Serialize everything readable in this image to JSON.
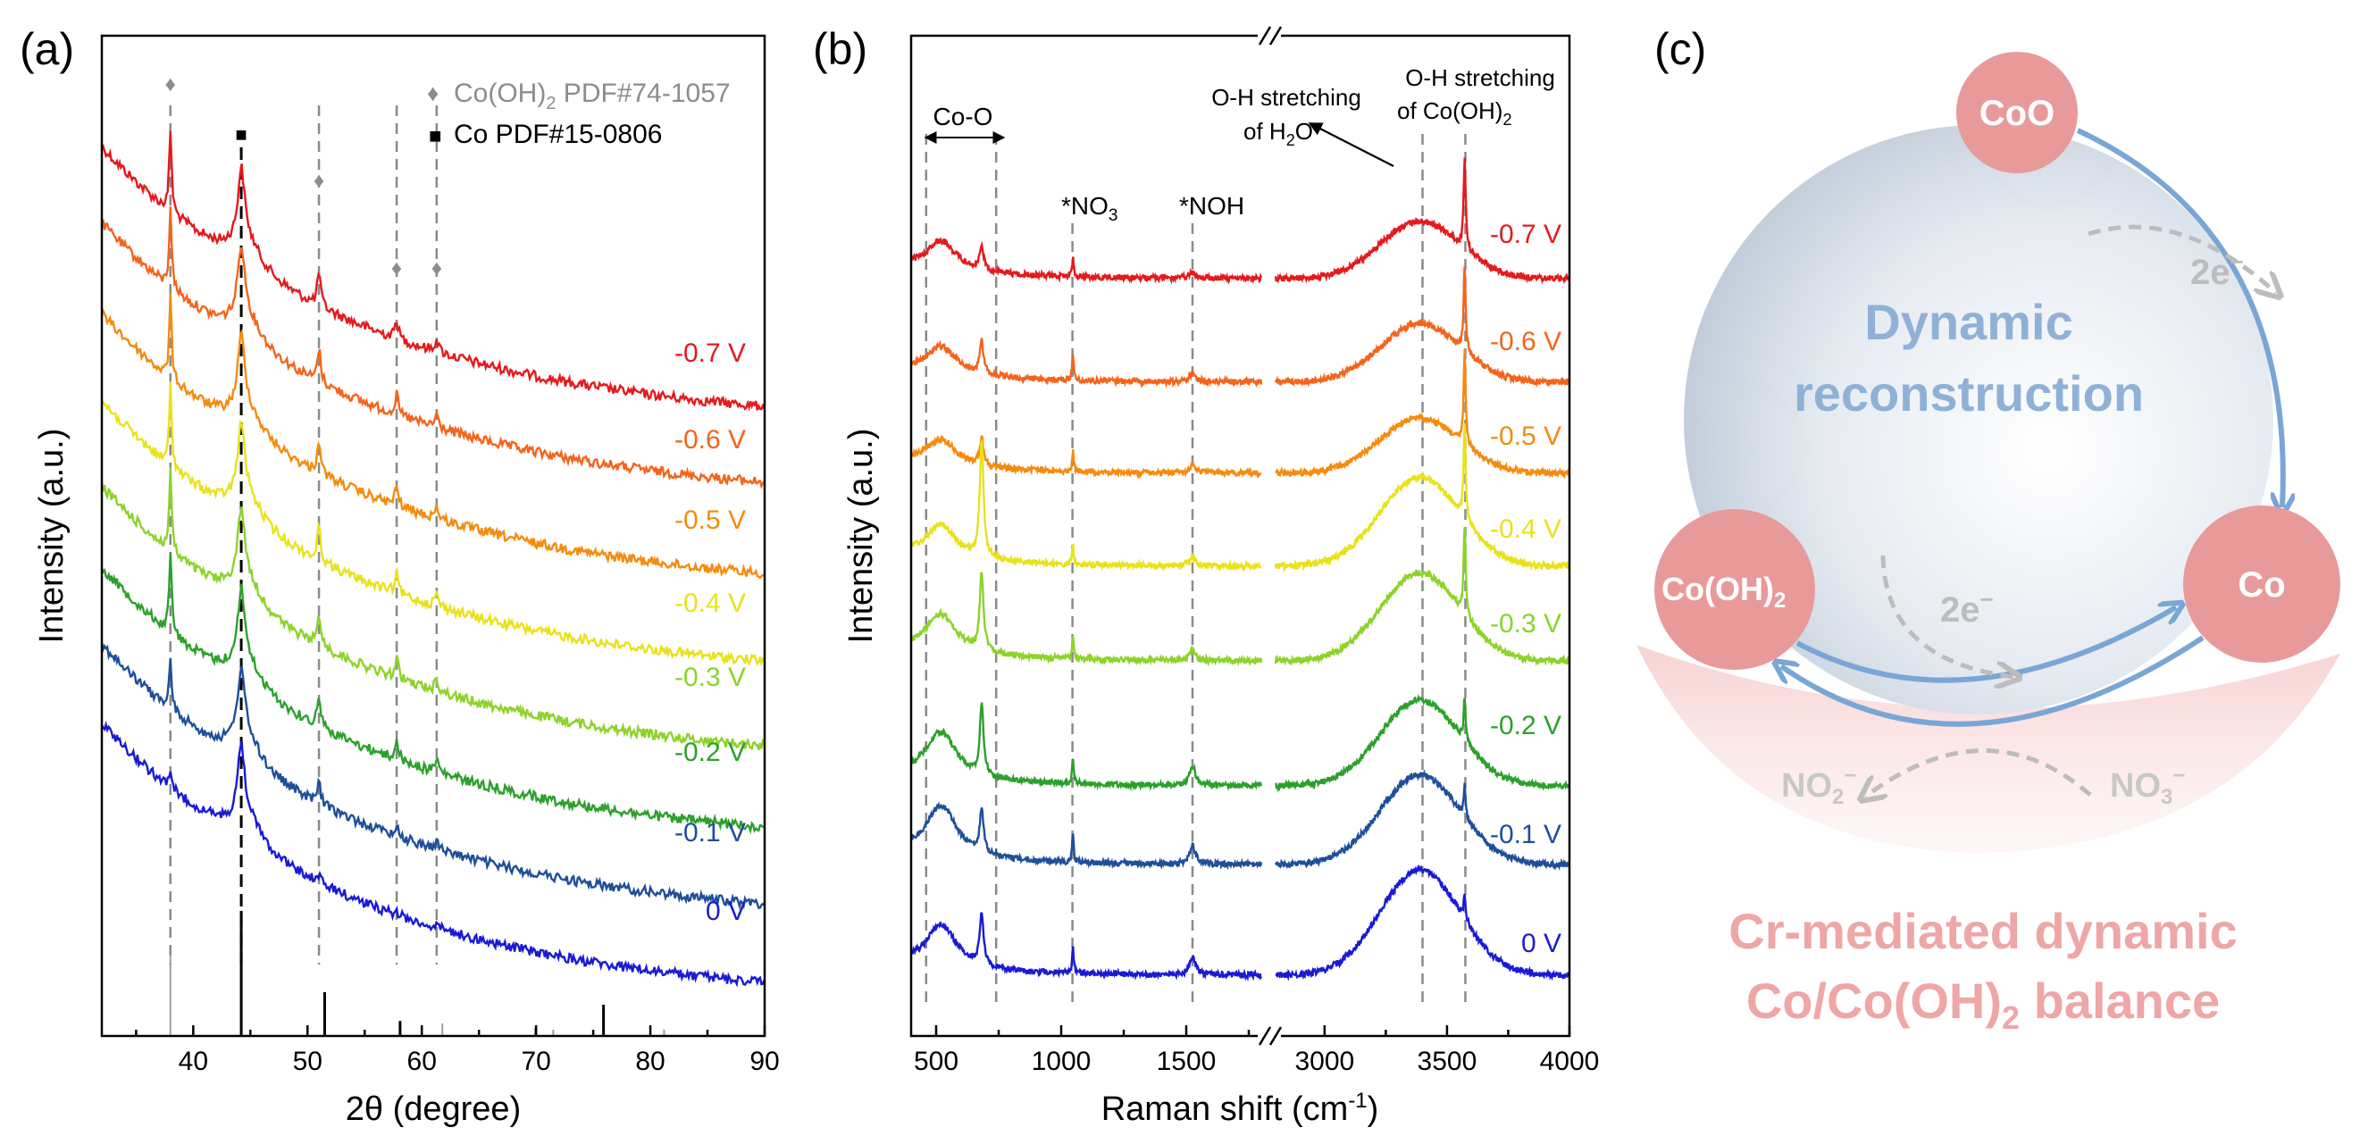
{
  "panels": {
    "a": "(a)",
    "b": "(b)",
    "c": "(c)"
  },
  "chart_data": [
    {
      "type": "line",
      "panel": "a",
      "xlabel": "2θ (degree)",
      "ylabel": "Intensity (a.u.)",
      "xlim": [
        32,
        90
      ],
      "xticks": [
        40,
        50,
        60,
        70,
        80,
        90
      ],
      "legend": [
        {
          "marker": "♦",
          "label": "Co(OH)",
          "sub": "2",
          "label_rest": " PDF#74-1057",
          "color": "#8c8c8c"
        },
        {
          "marker": "■",
          "label": "Co PDF#15-0806",
          "sub": "",
          "label_rest": "",
          "color": "#000000"
        }
      ],
      "reference_peaks": {
        "coh2": [
          38.0,
          51.0,
          57.8,
          61.3
        ],
        "co": [
          44.2
        ]
      },
      "stick_pattern": [
        {
          "x": 38.0,
          "h": 0.65,
          "color": "#9e9e9e"
        },
        {
          "x": 44.2,
          "h": 1.0,
          "color": "#000000"
        },
        {
          "x": 51.5,
          "h": 0.35,
          "color": "#000000"
        },
        {
          "x": 58.1,
          "h": 0.12,
          "color": "#000000"
        },
        {
          "x": 61.8,
          "h": 0.1,
          "color": "#9e9e9e"
        },
        {
          "x": 69.9,
          "h": 0.06,
          "color": "#9e9e9e"
        },
        {
          "x": 71.5,
          "h": 0.05,
          "color": "#9e9e9e"
        },
        {
          "x": 75.9,
          "h": 0.25,
          "color": "#000000"
        },
        {
          "x": 81.2,
          "h": 0.05,
          "color": "#9e9e9e"
        }
      ],
      "series": [
        {
          "name": "-0.7 V",
          "color": "#e41a1c"
        },
        {
          "name": "-0.6 V",
          "color": "#f4641c"
        },
        {
          "name": "-0.5 V",
          "color": "#f58b0f"
        },
        {
          "name": "-0.4 V",
          "color": "#e8e21c"
        },
        {
          "name": "-0.3 V",
          "color": "#8cd32a"
        },
        {
          "name": "-0.2 V",
          "color": "#2ca02c"
        },
        {
          "name": "-0.1 V",
          "color": "#1f4e9a"
        },
        {
          "name": "0 V",
          "color": "#1a1ad4"
        }
      ]
    },
    {
      "type": "line",
      "panel": "b",
      "xlabel": "Raman shift (cm",
      "xlabel_sup": "-1",
      "xlabel_end": ")",
      "ylabel": "Intensity (a.u.)",
      "xlim_left": [
        400,
        1800
      ],
      "xlim_right": [
        2800,
        4000
      ],
      "xticks_left": [
        500,
        1000,
        1500
      ],
      "xticks_right": [
        3000,
        3500,
        4000
      ],
      "peak_lines": [
        460,
        740,
        1045,
        1525,
        3400,
        3575
      ],
      "annotations": {
        "co_o": "Co-O",
        "no3": "*NO",
        "no3_sub": "3",
        "noh": "*NOH",
        "oh_water_1": "O-H stretching",
        "oh_water_2": "of H",
        "oh_water_sub": "2",
        "oh_water_end": "O",
        "oh_coh_1": "O-H stretching",
        "oh_coh_2": "of Co(OH)",
        "oh_coh_sub": "2"
      },
      "series": [
        {
          "name": "-0.7 V",
          "color": "#e41a1c"
        },
        {
          "name": "-0.6 V",
          "color": "#f4641c"
        },
        {
          "name": "-0.5 V",
          "color": "#f58b0f"
        },
        {
          "name": "-0.4 V",
          "color": "#e8e21c"
        },
        {
          "name": "-0.3 V",
          "color": "#8cd32a"
        },
        {
          "name": "-0.2 V",
          "color": "#2ca02c"
        },
        {
          "name": "-0.1 V",
          "color": "#1f4e9a"
        },
        {
          "name": "0 V",
          "color": "#1a1ad4"
        }
      ]
    }
  ],
  "diagram": {
    "node_coo": "CoO",
    "node_co": "Co",
    "node_coh_a": "Co(OH)",
    "node_coh_sub": "2",
    "center_1": "Dynamic",
    "center_2": "reconstruction",
    "e_top": "2e",
    "e_top_sup": "−",
    "e_mid": "2e",
    "e_mid_sup": "−",
    "no2": "NO",
    "no2_sub": "2",
    "no2_sup": "−",
    "no3": "NO",
    "no3_sub": "3",
    "no3_sup": "−",
    "bottom_1": "Cr-mediated dynamic",
    "bottom_2a": "Co/Co(OH)",
    "bottom_2sub": "2",
    "bottom_2b": " balance"
  }
}
